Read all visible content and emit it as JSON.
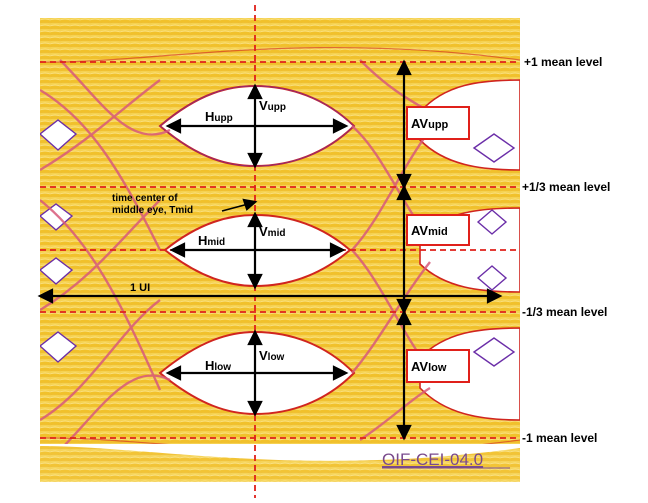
{
  "labels": {
    "level_plus1": "+1 mean level",
    "level_plus13": "+1/3 mean level",
    "level_minus13": "-1/3 mean level",
    "level_minus1": "-1 mean level",
    "ui": "1 UI",
    "tmid_line1": "time center of",
    "tmid_line2": "middle eye, Tmid",
    "watermark": "OIF-CEI-04.0"
  },
  "eyes": {
    "upper": {
      "h_main": "H",
      "h_sub": "upp",
      "v_main": "V",
      "v_sub": "upp",
      "av_main": "AV",
      "av_sub": "upp"
    },
    "middle": {
      "h_main": "H",
      "h_sub": "mid",
      "v_main": "V",
      "v_sub": "mid",
      "av_main": "AV",
      "av_sub": "mid"
    },
    "lower": {
      "h_main": "H",
      "h_sub": "low",
      "v_main": "V",
      "v_sub": "low",
      "av_main": "AV",
      "av_sub": "low"
    }
  },
  "colors": {
    "band": "#f2c52c",
    "band_light": "#fbe9a0",
    "edge_red": "#d0251f",
    "edge_purple": "#6b2ea8",
    "dashed": "#e0201a",
    "box": "#e0201a",
    "watermark": "#7a4a8c"
  }
}
